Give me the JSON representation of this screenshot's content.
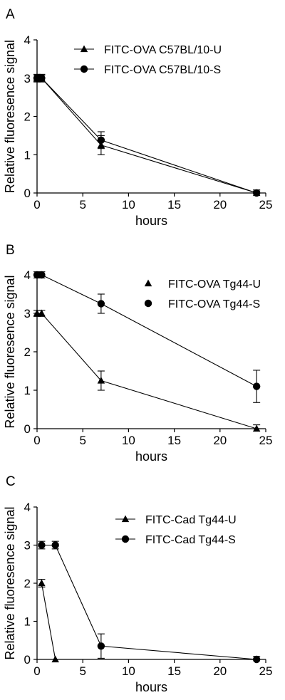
{
  "chart_data": [
    {
      "type": "line",
      "panel_label": "A",
      "xlabel": "hours",
      "ylabel": "Relative fluoresence signal",
      "xlim": [
        0,
        25
      ],
      "ylim": [
        0,
        4
      ],
      "x_ticks": [
        "0",
        "5",
        "10",
        "15",
        "20",
        "25"
      ],
      "y_ticks": [
        "0",
        "1",
        "2",
        "3",
        "4"
      ],
      "grid": false,
      "legend_position": "top-right",
      "series": [
        {
          "name": "FITC-OVA C57BL/10-U",
          "marker": "triangle",
          "points": [
            {
              "x": 0,
              "y": 3.0,
              "err": 0.08
            },
            {
              "x": 0.5,
              "y": 3.0,
              "err": 0.08
            },
            {
              "x": 7,
              "y": 1.25,
              "err": 0.25
            },
            {
              "x": 24,
              "y": 0.0,
              "err": 0.05
            }
          ]
        },
        {
          "name": "FITC-OVA C57BL/10-S",
          "marker": "circle",
          "points": [
            {
              "x": 0,
              "y": 3.0,
              "err": 0.1
            },
            {
              "x": 0.5,
              "y": 3.0,
              "err": 0.1
            },
            {
              "x": 7,
              "y": 1.38,
              "err": 0.22
            },
            {
              "x": 24,
              "y": 0.0,
              "err": 0.08
            }
          ]
        }
      ]
    },
    {
      "type": "line",
      "panel_label": "B",
      "xlabel": "hours",
      "ylabel": "Relative fluoresence signal",
      "xlim": [
        0,
        25
      ],
      "ylim": [
        0,
        4
      ],
      "x_ticks": [
        "0",
        "5",
        "10",
        "15",
        "20",
        "25"
      ],
      "y_ticks": [
        "0",
        "1",
        "2",
        "3",
        "4"
      ],
      "grid": false,
      "legend_position": "top-right",
      "series": [
        {
          "name": "FITC-OVA Tg44-U",
          "marker": "triangle",
          "points": [
            {
              "x": 0,
              "y": 3.0,
              "err": 0.08
            },
            {
              "x": 0.5,
              "y": 3.0,
              "err": 0.08
            },
            {
              "x": 7,
              "y": 1.25,
              "err": 0.25
            },
            {
              "x": 24,
              "y": 0.0,
              "err": 0.1
            }
          ]
        },
        {
          "name": "FITC-OVA Tg44-S",
          "marker": "circle",
          "points": [
            {
              "x": 0,
              "y": 4.0,
              "err": 0.08
            },
            {
              "x": 0.5,
              "y": 4.0,
              "err": 0.08
            },
            {
              "x": 7,
              "y": 3.25,
              "err": 0.25
            },
            {
              "x": 24,
              "y": 1.1,
              "err": 0.42
            }
          ]
        }
      ]
    },
    {
      "type": "line",
      "panel_label": "C",
      "xlabel": "hours",
      "ylabel": "Relative fluoresence signal",
      "xlim": [
        0,
        25
      ],
      "ylim": [
        0,
        4
      ],
      "x_ticks": [
        "0",
        "5",
        "10",
        "15",
        "20",
        "25"
      ],
      "y_ticks": [
        "0",
        "1",
        "2",
        "3",
        "4"
      ],
      "grid": false,
      "legend_position": "top-right",
      "series": [
        {
          "name": "FITC-Cad Tg44-U",
          "marker": "triangle",
          "points": [
            {
              "x": 0.5,
              "y": 2.0,
              "err": 0.1
            },
            {
              "x": 2,
              "y": 0.0,
              "err": 0.0
            }
          ]
        },
        {
          "name": "FITC-Cad Tg44-S",
          "marker": "circle",
          "points": [
            {
              "x": 0.5,
              "y": 3.0,
              "err": 0.1
            },
            {
              "x": 2,
              "y": 3.0,
              "err": 0.1
            },
            {
              "x": 7,
              "y": 0.35,
              "err": 0.32
            },
            {
              "x": 24,
              "y": 0.0,
              "err": 0.08
            }
          ]
        }
      ]
    }
  ]
}
